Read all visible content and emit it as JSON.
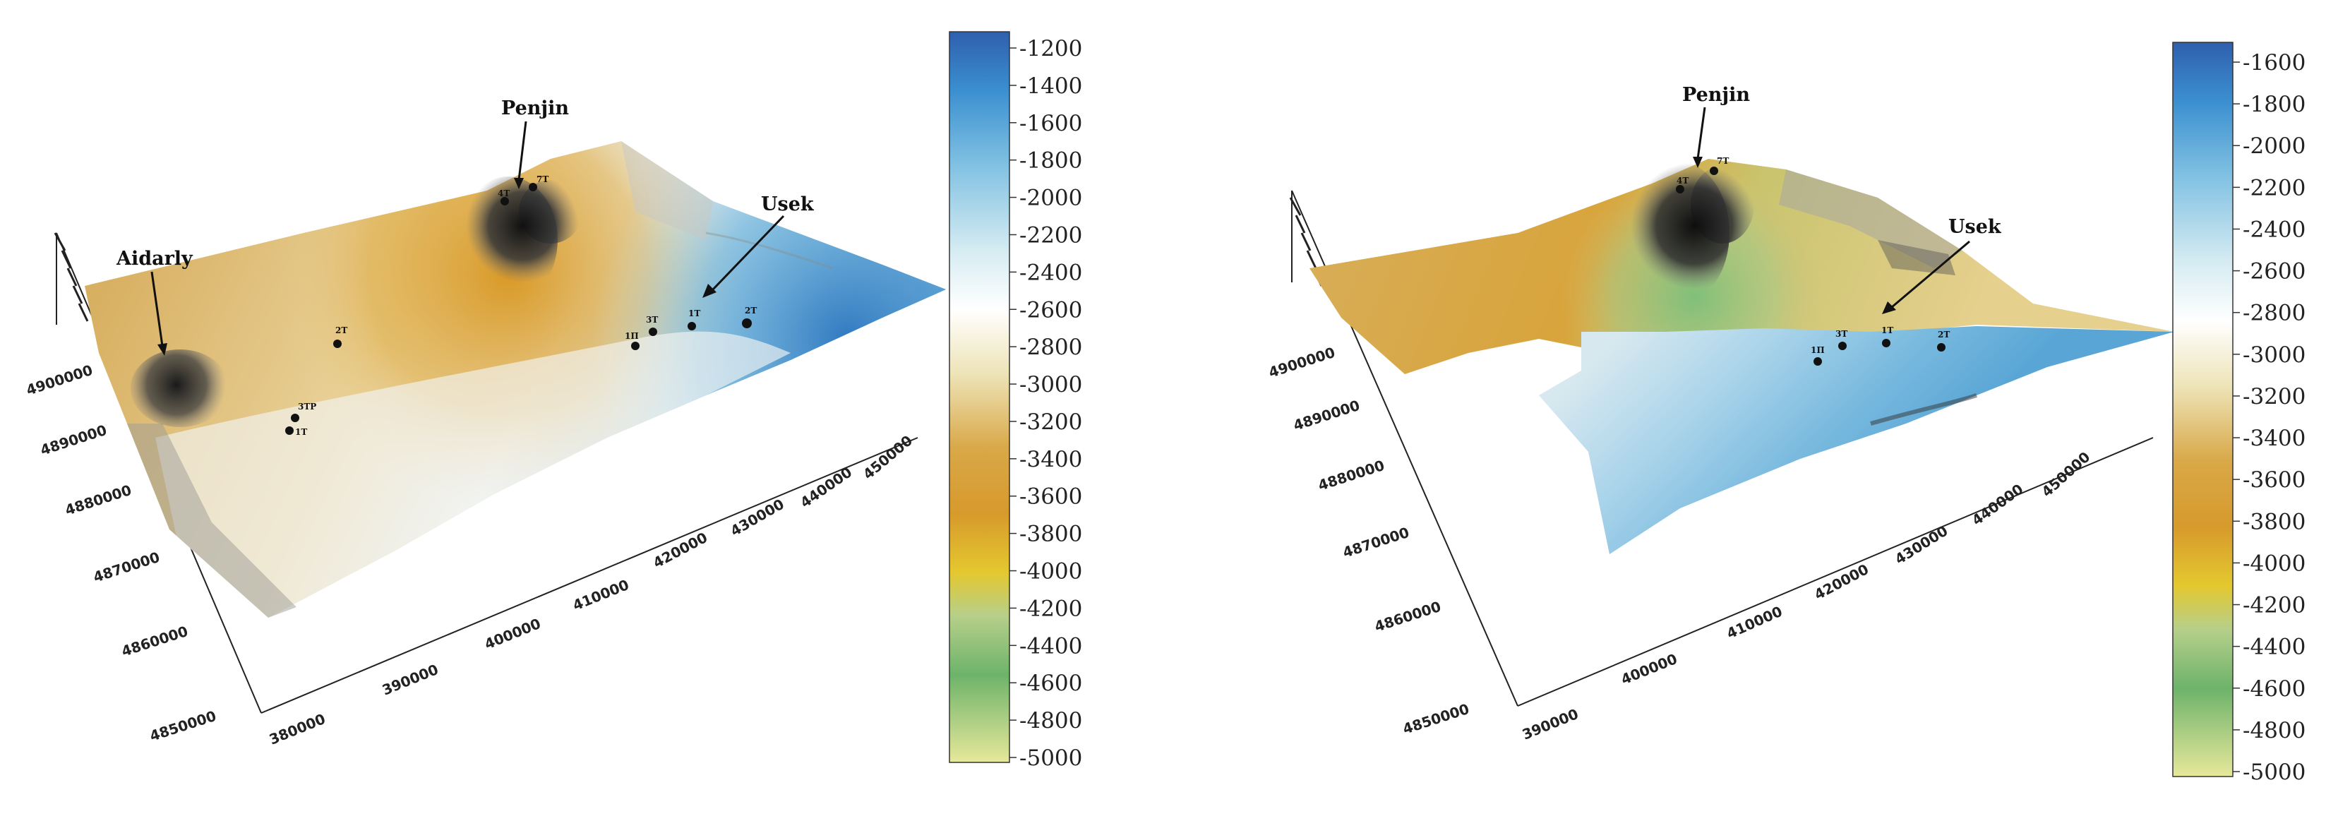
{
  "panels": [
    {
      "id": "left",
      "colorbar": {
        "ticks": [
          "-1200",
          "-1400",
          "-1600",
          "-1800",
          "-2000",
          "-2200",
          "-2400",
          "-2600",
          "-2800",
          "-3000",
          "-3200",
          "-3400",
          "-3600",
          "-3800",
          "-4000",
          "-4200",
          "-4400",
          "-4600",
          "-4800",
          "-5000"
        ]
      },
      "x_axis_ticks": [
        "380000",
        "390000",
        "400000",
        "410000",
        "420000",
        "430000",
        "440000",
        "450000"
      ],
      "y_axis_ticks": [
        "4850000",
        "4860000",
        "4870000",
        "4880000",
        "4890000",
        "4900000"
      ],
      "places": [
        {
          "label": "Penjin"
        },
        {
          "label": "Usek"
        },
        {
          "label": "Aidarly"
        }
      ],
      "wells": [
        {
          "label": "4T"
        },
        {
          "label": "7T"
        },
        {
          "label": "2T"
        },
        {
          "label": "3TP"
        },
        {
          "label": "1T"
        },
        {
          "label": "1П"
        },
        {
          "label": "3T"
        },
        {
          "label": "1T"
        },
        {
          "label": "2T"
        }
      ]
    },
    {
      "id": "right",
      "colorbar": {
        "ticks": [
          "-1600",
          "-1800",
          "-2000",
          "-2200",
          "-2400",
          "-2600",
          "-2800",
          "-3000",
          "-3200",
          "-3400",
          "-3600",
          "-3800",
          "-4000",
          "-4200",
          "-4400",
          "-4600",
          "-4800",
          "-5000"
        ]
      },
      "x_axis_ticks": [
        "390000",
        "400000",
        "410000",
        "420000",
        "430000",
        "440000",
        "450000"
      ],
      "y_axis_ticks": [
        "4850000",
        "4860000",
        "4870000",
        "4880000",
        "4890000",
        "4900000"
      ],
      "places": [
        {
          "label": "Penjin"
        },
        {
          "label": "Usek"
        }
      ],
      "wells": [
        {
          "label": "4T"
        },
        {
          "label": "7T"
        },
        {
          "label": "1П"
        },
        {
          "label": "3T"
        },
        {
          "label": "1T"
        },
        {
          "label": "2T"
        }
      ]
    }
  ],
  "colors": {
    "deep": "#3464b0",
    "blue": "#4a9fd6",
    "light_blue": "#b8d9ea",
    "white": "#f4f7f6",
    "cream": "#e9dfa8",
    "orange": "#d9a03a",
    "yellow": "#e4c52e",
    "green": "#6fb36b",
    "pale": "#d8df9a"
  }
}
